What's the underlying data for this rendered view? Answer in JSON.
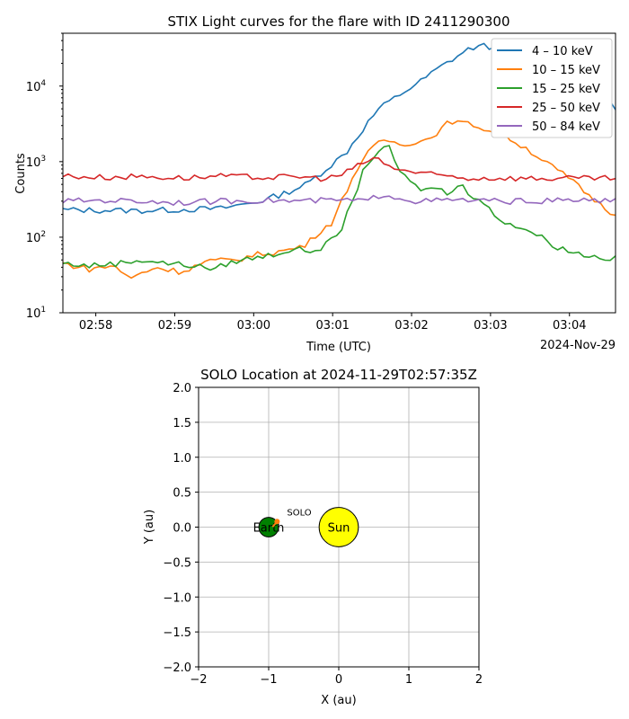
{
  "chart_data": [
    {
      "type": "line",
      "title": "STIX Light curves for the flare with ID 2411290300",
      "xlabel": "Time (UTC)",
      "ylabel": "Counts",
      "x_offset_label": "2024-Nov-29",
      "y_scale": "log",
      "ylim": [
        10,
        50000
      ],
      "xlim": [
        "02:57:35",
        "03:04:35"
      ],
      "x_ticks": [
        "02:58",
        "02:59",
        "03:00",
        "03:01",
        "03:02",
        "03:03",
        "03:04"
      ],
      "y_ticks": [
        "10^1",
        "10^2",
        "10^3",
        "10^4"
      ],
      "legend_position": "top-right",
      "grid": false,
      "series": [
        {
          "name": "4 – 10 keV",
          "color": "#1f77b4",
          "points": [
            [
              "02:57:35",
              230
            ],
            [
              "02:57:45",
              230
            ],
            [
              "02:57:55",
              200
            ],
            [
              "02:58:05",
              230
            ],
            [
              "02:58:15",
              220
            ],
            [
              "02:58:25",
              205
            ],
            [
              "02:58:35",
              230
            ],
            [
              "02:58:45",
              220
            ],
            [
              "02:58:55",
              240
            ],
            [
              "02:59:05",
              230
            ],
            [
              "02:59:15",
              230
            ],
            [
              "02:59:25",
              220
            ],
            [
              "02:59:35",
              245
            ],
            [
              "02:59:45",
              225
            ],
            [
              "02:59:55",
              240
            ],
            [
              "03:00:05",
              265
            ],
            [
              "03:00:15",
              270
            ],
            [
              "03:00:25",
              245
            ],
            [
              "03:00:35",
              270
            ],
            [
              "03:00:45",
              270
            ],
            [
              "03:00:55",
              270
            ],
            [
              "02:59:25",
              280
            ],
            [
              "02:59:35",
              300
            ],
            [
              "02:59:45",
              305
            ],
            [
              "02:59:55",
              330
            ],
            [
              "03:00:05",
              380
            ],
            [
              "03:00:15",
              400
            ]
          ]
        },
        {
          "name": "10 – 15 keV",
          "color": "#ff7f0e",
          "points": []
        },
        {
          "name": "15 – 25 keV",
          "color": "#2ca02c",
          "points": []
        },
        {
          "name": "25 – 50 keV",
          "color": "#d62728",
          "points": []
        },
        {
          "name": "50 – 84 keV",
          "color": "#9467bd",
          "points": []
        }
      ]
    },
    {
      "type": "scatter",
      "title": "SOLO Location at 2024-11-29T02:57:35Z",
      "xlabel": "X (au)",
      "ylabel": "Y (au)",
      "xlim": [
        -2,
        2
      ],
      "ylim": [
        -2,
        2
      ],
      "x_ticks": [
        "−2",
        "−1",
        "0",
        "1",
        "2"
      ],
      "y_ticks": [
        "2.0",
        "1.5",
        "1.0",
        "0.5",
        "0.0",
        "−0.5",
        "−1.0",
        "−1.5",
        "−2.0"
      ],
      "grid": true,
      "bodies": [
        {
          "name": "Sun",
          "x": 0.0,
          "y": 0.0,
          "radius_au": 0.28,
          "color": "#ffff00"
        },
        {
          "name": "Earth",
          "x": -1.0,
          "y": 0.0,
          "radius_au": 0.14,
          "color": "#008000"
        },
        {
          "name": "SOLO",
          "x": -0.88,
          "y": 0.08,
          "color": "#ff7f0e"
        }
      ]
    }
  ]
}
